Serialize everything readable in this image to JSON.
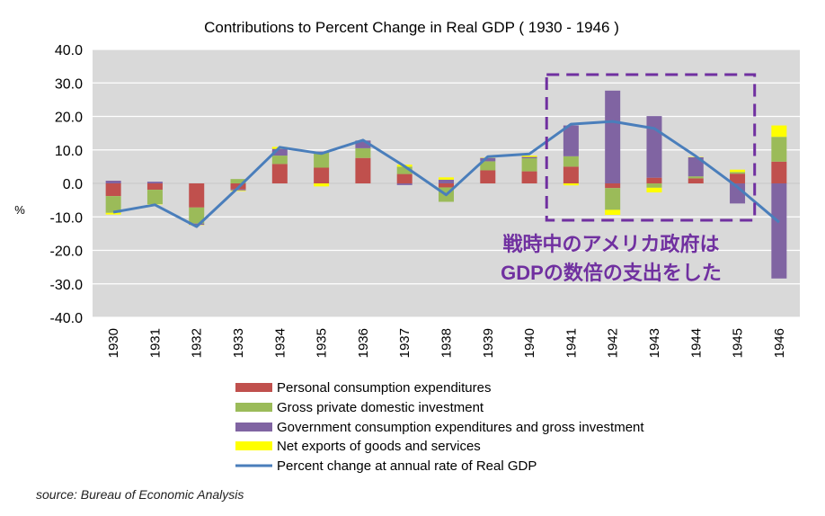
{
  "chart_data": {
    "type": "bar",
    "stacked": true,
    "title": "Contributions to Percent Change in Real GDP ( 1930 - 1946 )",
    "ylabel": "%",
    "ylim": [
      -40,
      40
    ],
    "yticks": [
      "40.0",
      "30.0",
      "20.0",
      "10.0",
      "0.0",
      "-10.0",
      "-20.0",
      "-30.0",
      "-40.0"
    ],
    "ytick_values": [
      40,
      30,
      20,
      10,
      0,
      -10,
      -20,
      -30,
      -40
    ],
    "grid": true,
    "legend_position": "bottom",
    "categories": [
      "1930",
      "1931",
      "1932",
      "1933",
      "1934",
      "1935",
      "1936",
      "1937",
      "1938",
      "1939",
      "1940",
      "1941",
      "1942",
      "1943",
      "1944",
      "1945",
      "1946"
    ],
    "series": [
      {
        "name": "Personal consumption expenditures",
        "type": "bar",
        "color": "#c0504d",
        "values": [
          -3.8,
          -1.9,
          -7.2,
          -1.8,
          5.8,
          4.7,
          7.6,
          2.8,
          -1.2,
          3.9,
          3.6,
          5.0,
          -1.4,
          1.7,
          1.5,
          2.9,
          6.5
        ]
      },
      {
        "name": "Gross private domestic investment",
        "type": "bar",
        "color": "#9bbb59",
        "values": [
          -5.0,
          -4.3,
          -4.8,
          1.3,
          2.5,
          4.5,
          2.9,
          2.2,
          -4.3,
          2.7,
          3.9,
          3.1,
          -6.5,
          -1.3,
          0.6,
          0.5,
          7.4
        ]
      },
      {
        "name": "Government consumption expenditures and gross investment",
        "type": "bar",
        "color": "#8064a2",
        "values": [
          0.8,
          0.5,
          -0.4,
          -0.3,
          2.0,
          0.3,
          2.3,
          -0.5,
          1.1,
          1.0,
          0.4,
          9.2,
          27.7,
          18.4,
          5.7,
          -6.0,
          -28.4
        ]
      },
      {
        "name": "Net exports of goods and services",
        "type": "bar",
        "color": "#ffff00",
        "values": [
          -0.5,
          -0.1,
          -0.1,
          -0.2,
          0.6,
          -0.9,
          0.0,
          0.6,
          0.7,
          0.1,
          0.4,
          -0.6,
          -1.5,
          -1.4,
          0.1,
          0.7,
          3.4
        ]
      },
      {
        "name": "Percent change at annual rate of Real GDP",
        "type": "line",
        "color": "#4a7ebb",
        "values": [
          -8.6,
          -6.4,
          -12.9,
          -1.3,
          10.8,
          8.9,
          12.9,
          5.1,
          -3.4,
          8.0,
          8.8,
          17.7,
          18.5,
          16.4,
          8.1,
          -1.1,
          -11.6
        ]
      }
    ],
    "annotation": {
      "text_lines": [
        "戦時中のアメリカ政府は",
        "GDPの数倍の支出をした"
      ],
      "color": "#7030a0",
      "highlight_categories": [
        "1941",
        "1945"
      ],
      "box_ylim": [
        -11,
        32.5
      ]
    }
  },
  "source": "source: Bureau of Economic Analysis"
}
